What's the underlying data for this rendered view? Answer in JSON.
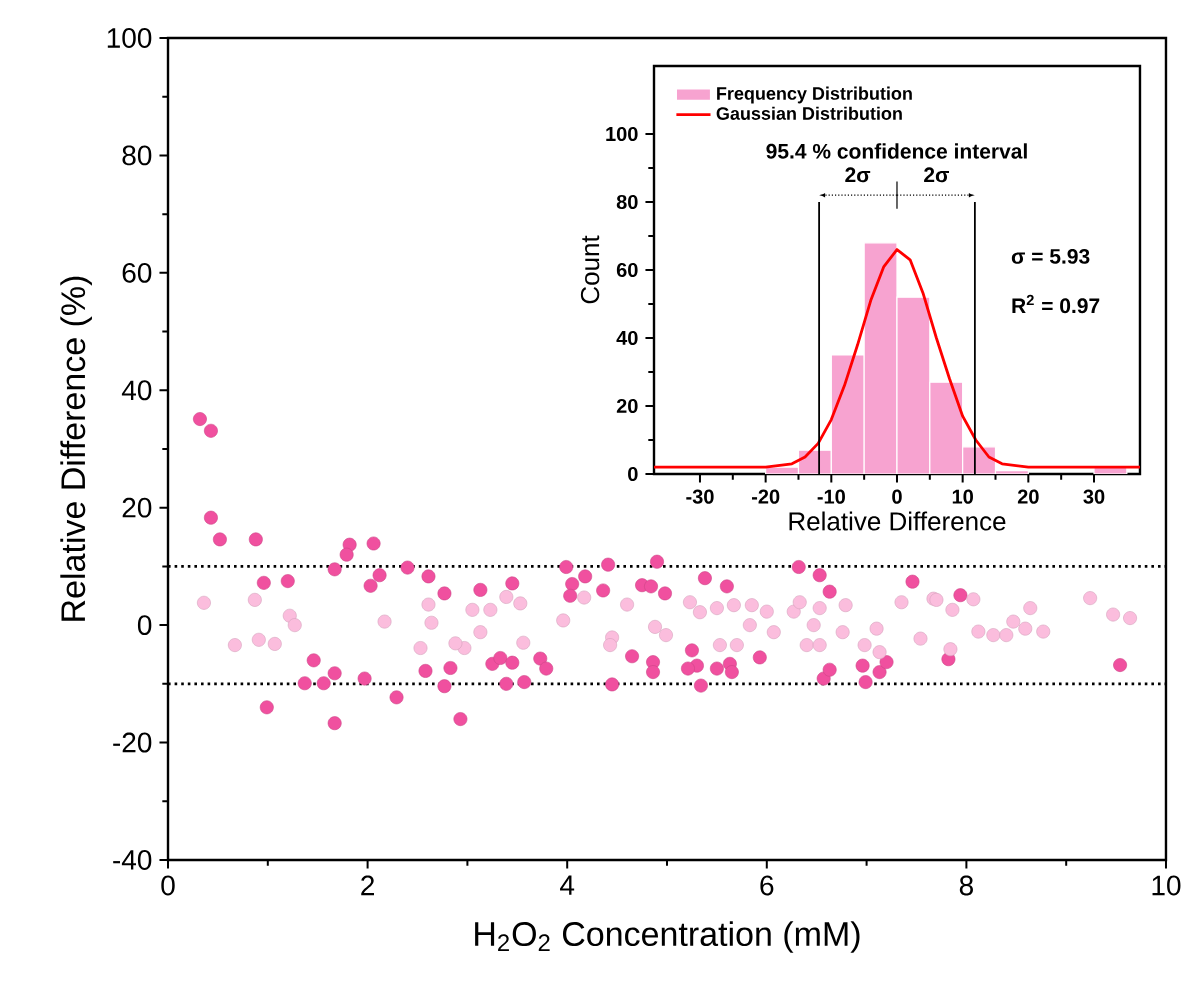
{
  "chart_data": [
    {
      "type": "scatter",
      "xlabel": "H$_{2}$O$_{2}$ Concentration (mM)",
      "ylabel": "Relative Difference (%)",
      "xlim": [
        0,
        10
      ],
      "xticks": [
        0,
        2,
        4,
        6,
        8,
        10
      ],
      "ylim": [
        -40,
        100
      ],
      "yticks": [
        -40,
        -20,
        0,
        20,
        40,
        60,
        80,
        100
      ],
      "marker": "circle",
      "ref_lines": [
        {
          "axis": "y",
          "value": 10,
          "line_style": "dotted",
          "color": "#000000"
        },
        {
          "axis": "y",
          "value": -10,
          "line_style": "dotted",
          "color": "#000000"
        }
      ],
      "series": [
        {
          "color": "#f0509f",
          "x": [
            0.32,
            0.43,
            0.43,
            0.52,
            0.88,
            0.96,
            1.2,
            0.99,
            1.46,
            1.37,
            1.56,
            1.67,
            1.67,
            1.82,
            1.79,
            1.67,
            2.06,
            2.03,
            2.12,
            1.97,
            2.29,
            2.4,
            2.61,
            2.77,
            2.58,
            2.77,
            2.83,
            2.93,
            3.13,
            3.45,
            3.25,
            3.33,
            3.39,
            3.45,
            3.57,
            3.73,
            3.79,
            3.99,
            4.05,
            4.18,
            4.03,
            4.36,
            4.41,
            4.45,
            4.65,
            4.75,
            4.84,
            4.9,
            4.98,
            4.86,
            4.86,
            5.38,
            5.6,
            6.32,
            6.53,
            6.63,
            5.25,
            5.3,
            5.21,
            5.34,
            5.5,
            5.63,
            5.65,
            5.93,
            6.57,
            6.63,
            6.96,
            6.99,
            7.13,
            7.2,
            7.46,
            7.94,
            7.82,
            9.54
          ],
          "values": [
            35.1,
            33.1,
            18.3,
            14.6,
            14.6,
            7.2,
            7.5,
            -14.0,
            -6.0,
            -9.9,
            -9.9,
            -8.2,
            -16.7,
            13.7,
            12.0,
            9.5,
            13.9,
            6.7,
            8.5,
            -9.1,
            -12.3,
            9.8,
            8.3,
            5.4,
            -7.8,
            -10.4,
            -7.3,
            -16.0,
            6.0,
            7.1,
            -6.6,
            -5.6,
            -10.0,
            -6.4,
            -9.7,
            -5.7,
            -7.4,
            9.9,
            7.0,
            8.3,
            5.0,
            5.9,
            10.3,
            -10.1,
            -5.3,
            6.8,
            6.6,
            10.8,
            5.4,
            -6.3,
            -8.0,
            8.0,
            6.6,
            9.9,
            8.5,
            5.7,
            -4.3,
            -6.9,
            -7.4,
            -10.3,
            -7.4,
            -6.6,
            -8.0,
            -5.5,
            -9.1,
            -7.6,
            -6.9,
            -9.7,
            -8.0,
            -6.3,
            7.4,
            5.1,
            -5.8,
            -6.8
          ]
        },
        {
          "color": "#fbbddd",
          "x": [
            0.36,
            0.67,
            0.87,
            0.91,
            1.07,
            1.22,
            1.27,
            2.17,
            2.61,
            2.64,
            2.53,
            2.97,
            2.88,
            3.05,
            3.23,
            3.13,
            3.39,
            3.53,
            3.56,
            4.17,
            3.96,
            4.6,
            4.45,
            4.43,
            4.88,
            4.99,
            5.33,
            5.23,
            5.5,
            5.67,
            5.85,
            6.0,
            5.83,
            6.07,
            6.27,
            6.33,
            6.47,
            6.53,
            6.79,
            6.4,
            6.53,
            6.76,
            5.53,
            5.7,
            6.98,
            7.13,
            7.1,
            7.35,
            7.54,
            7.67,
            8.07,
            8.12,
            8.27,
            8.4,
            8.47,
            8.64,
            8.59,
            8.77,
            9.24,
            9.47,
            9.64,
            7.84,
            7.7,
            7.86
          ],
          "values": [
            3.8,
            -3.4,
            4.3,
            -2.5,
            -3.2,
            1.6,
            0.0,
            0.6,
            3.5,
            0.4,
            -3.9,
            -3.9,
            -3.1,
            2.6,
            2.6,
            -1.2,
            4.8,
            3.7,
            -3.0,
            4.7,
            0.8,
            3.5,
            -2.1,
            -3.4,
            -0.3,
            -1.7,
            2.2,
            3.9,
            2.9,
            3.4,
            3.4,
            2.3,
            0.0,
            -1.2,
            2.3,
            3.9,
            0.0,
            2.9,
            3.4,
            -3.4,
            -3.4,
            -1.2,
            -3.4,
            -3.4,
            -3.4,
            -4.6,
            -0.6,
            3.9,
            -2.3,
            4.5,
            4.4,
            -1.1,
            -1.7,
            -1.7,
            0.6,
            2.9,
            -0.6,
            -1.1,
            4.6,
            1.8,
            1.2,
            -4.1,
            4.3,
            2.6
          ]
        }
      ]
    },
    {
      "type": "histogram",
      "xlabel": "Relative Difference",
      "ylabel": "Count",
      "xlim": [
        -37,
        37
      ],
      "xticks": [
        -30,
        -20,
        -10,
        0,
        10,
        20,
        30
      ],
      "ylim": [
        0,
        120
      ],
      "yticks": [
        0,
        20,
        40,
        60,
        80,
        100
      ],
      "legend": "top left",
      "bins": [
        -20,
        -15,
        -10,
        -5,
        0,
        5,
        10,
        15,
        20,
        25,
        30,
        35
      ],
      "series": [
        {
          "name": "Frequency Distribution",
          "type": "histogram",
          "color": "#f7a3d0",
          "values": [
            2,
            7,
            35,
            68,
            52,
            27,
            8,
            1,
            0,
            0,
            2
          ]
        },
        {
          "name": "Gaussian Distribution",
          "type": "line",
          "color": "#ff0000",
          "x": [
            -37,
            -20,
            -16,
            -14,
            -12,
            -10,
            -8,
            -6,
            -4,
            -2,
            0,
            2,
            4,
            6,
            8,
            10,
            12,
            14,
            16,
            20,
            37
          ],
          "values": [
            2,
            2,
            3,
            5,
            9,
            16,
            26,
            38,
            51,
            61,
            66,
            63,
            53,
            40,
            28,
            17,
            10,
            5,
            3,
            2,
            2
          ]
        }
      ],
      "ref_lines": [
        {
          "axis": "x",
          "value": -11.86,
          "color": "#000000",
          "line_style": "solid"
        },
        {
          "axis": "x",
          "value": 11.86,
          "color": "#000000",
          "line_style": "solid"
        }
      ],
      "annotations": [
        "95.4 % confidence interval",
        "2σ",
        "2σ",
        "σ = 5.93",
        "R$^{2}$ = 0.97"
      ]
    }
  ]
}
